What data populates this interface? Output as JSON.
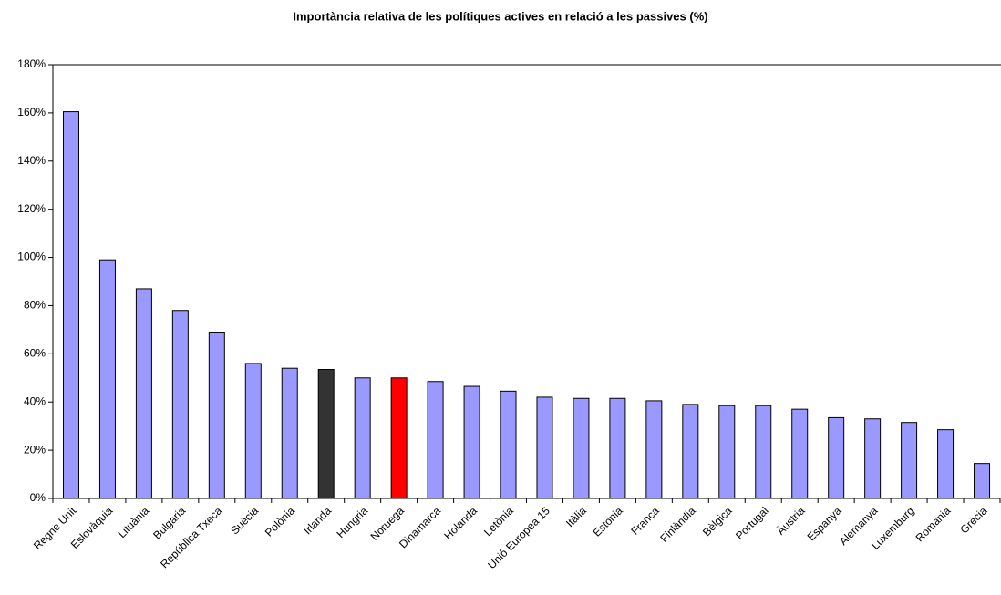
{
  "chart_data": {
    "type": "bar",
    "title": "Importància relativa de les polítiques actives en relació a les passives (%)",
    "categories": [
      "Regne Unit",
      "Eslovàquia",
      "Lituània",
      "Bulgaria",
      "República Txeca",
      "Suècia",
      "Polònia",
      "Irlanda",
      "Hungria",
      "Noruega",
      "Dinamarca",
      "Holanda",
      "Letònia",
      "Unió Europea 15",
      "Itàlia",
      "Estonia",
      "França",
      "Finlàndia",
      "Bèlgica",
      "Portugal",
      "Àustria",
      "Espanya",
      "Alemanya",
      "Luxemburg",
      "Romania",
      "Grècia"
    ],
    "values": [
      160.5,
      99,
      87,
      78,
      69,
      56,
      54,
      53.5,
      50,
      50,
      48.5,
      46.5,
      44.5,
      42,
      41.5,
      41.5,
      40.5,
      39,
      38.5,
      38.5,
      37,
      33.5,
      33,
      31.5,
      28.5,
      14.5
    ],
    "colors": [
      "#9999ff",
      "#9999ff",
      "#9999ff",
      "#9999ff",
      "#9999ff",
      "#9999ff",
      "#9999ff",
      "#333333",
      "#9999ff",
      "#ff0000",
      "#9999ff",
      "#9999ff",
      "#9999ff",
      "#9999ff",
      "#9999ff",
      "#9999ff",
      "#9999ff",
      "#9999ff",
      "#9999ff",
      "#9999ff",
      "#9999ff",
      "#9999ff",
      "#9999ff",
      "#9999ff",
      "#9999ff",
      "#9999ff"
    ],
    "ylim": [
      0,
      180
    ],
    "yticks": [
      {
        "value": 0,
        "label": "0%"
      },
      {
        "value": 20,
        "label": "20%"
      },
      {
        "value": 40,
        "label": "40%"
      },
      {
        "value": 60,
        "label": "60%"
      },
      {
        "value": 80,
        "label": "80%"
      },
      {
        "value": 100,
        "label": "100%"
      },
      {
        "value": 120,
        "label": "120%"
      },
      {
        "value": 140,
        "label": "140%"
      },
      {
        "value": 160,
        "label": "160%"
      },
      {
        "value": 180,
        "label": "180%"
      }
    ],
    "grid": false
  }
}
